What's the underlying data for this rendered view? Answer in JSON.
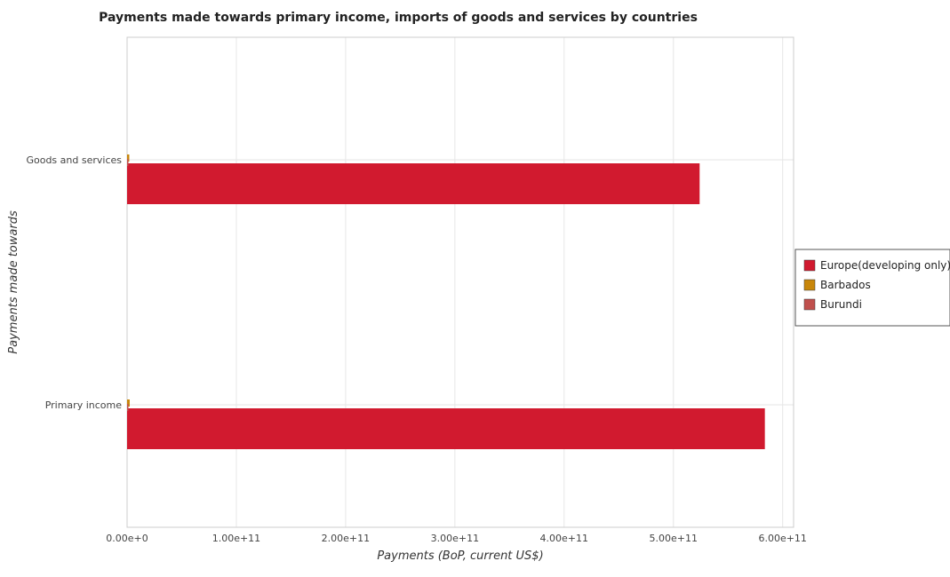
{
  "chart_data": {
    "type": "bar",
    "orientation": "horizontal",
    "title": "Payments made towards primary income, imports of goods and services by countries",
    "xlabel": "Payments (BoP, current US$)",
    "ylabel": "Payments made towards",
    "categories": [
      "Goods and services",
      "Primary income"
    ],
    "xlim": [
      0,
      610000000000
    ],
    "xticks": [
      0,
      100000000000,
      200000000000,
      300000000000,
      400000000000,
      500000000000,
      600000000000
    ],
    "xtick_labels": [
      "0.00e+0",
      "1.00e+11",
      "2.00e+11",
      "3.00e+11",
      "4.00e+11",
      "5.00e+11",
      "6.00e+11"
    ],
    "grid": true,
    "legend_position": "right",
    "series": [
      {
        "name": "Europe(developing only)",
        "color": "#d11a2f",
        "values": [
          524000000000,
          583700000000
        ]
      },
      {
        "name": "Barbados",
        "color": "#c8860a",
        "values": [
          2000000000,
          2400000000
        ]
      },
      {
        "name": "Burundi",
        "color": "#c0504d",
        "values": [
          420000000,
          450000000
        ]
      }
    ]
  }
}
